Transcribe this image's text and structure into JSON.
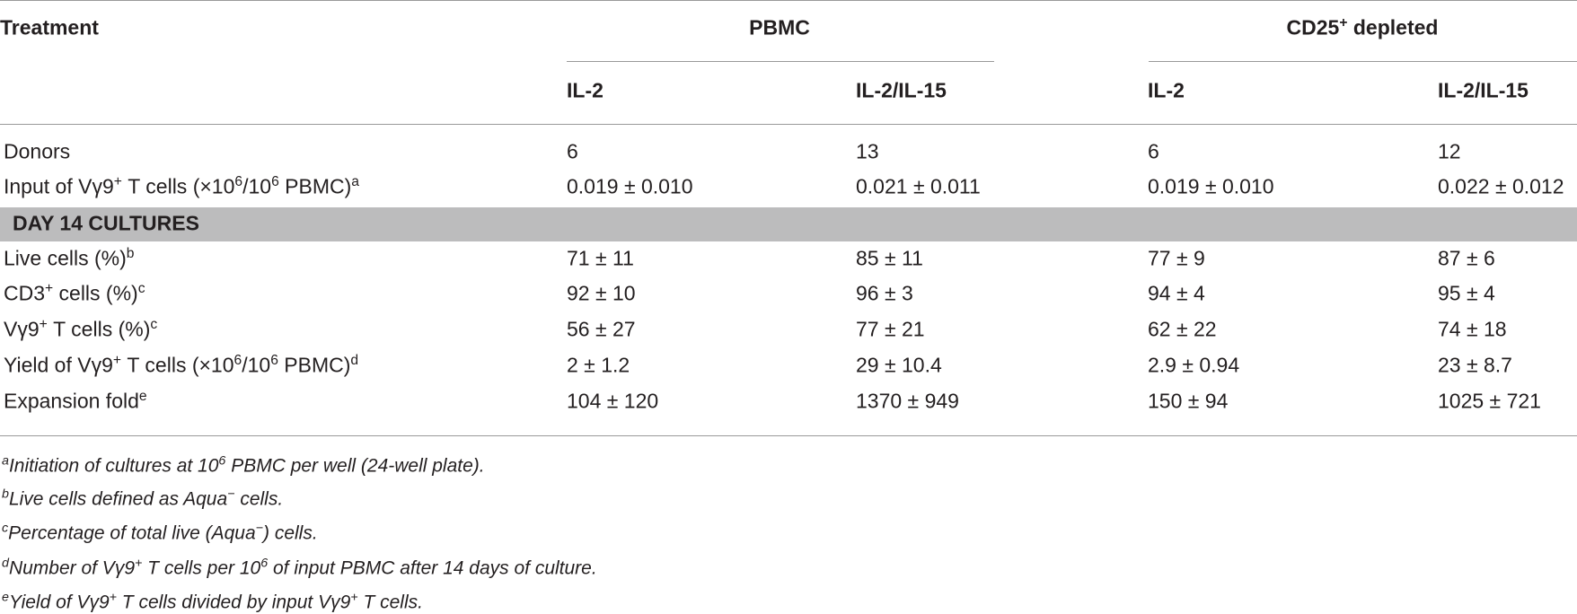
{
  "header": {
    "treatment": "Treatment",
    "groups": [
      {
        "label": [
          {
            "text": "PBMC"
          }
        ],
        "columns": [
          "IL-2",
          "IL-2/IL-15"
        ]
      },
      {
        "label": [
          {
            "text": "CD25"
          },
          {
            "sup": "+"
          },
          {
            "text": " depleted"
          }
        ],
        "columns": [
          "IL-2",
          "IL-2/IL-15"
        ]
      }
    ]
  },
  "rows_top": [
    {
      "label": [
        {
          "text": "Donors"
        }
      ],
      "cells": [
        "6",
        "13",
        "6",
        "12"
      ]
    },
    {
      "label": [
        {
          "text": "Input of Vγ9"
        },
        {
          "sup": "+"
        },
        {
          "text": " T cells (×10"
        },
        {
          "sup": "6"
        },
        {
          "text": "/10"
        },
        {
          "sup": "6"
        },
        {
          "text": " PBMC)"
        },
        {
          "sup": "a"
        }
      ],
      "cells": [
        "0.019 ± 0.010",
        "0.021 ± 0.011",
        "0.019 ± 0.010",
        "0.022 ± 0.012"
      ]
    }
  ],
  "section": "DAY 14 CULTURES",
  "rows": [
    {
      "label": [
        {
          "text": "Live cells (%)"
        },
        {
          "sup": "b"
        }
      ],
      "cells": [
        "71 ± 11",
        "85 ± 11",
        "77 ± 9",
        "87 ± 6"
      ]
    },
    {
      "label": [
        {
          "text": "CD3"
        },
        {
          "sup": "+"
        },
        {
          "text": " cells (%)"
        },
        {
          "sup": "c"
        }
      ],
      "cells": [
        "92 ± 10",
        "96 ± 3",
        "94 ± 4",
        "95 ± 4"
      ]
    },
    {
      "label": [
        {
          "text": "Vγ9"
        },
        {
          "sup": "+"
        },
        {
          "text": " T cells (%)"
        },
        {
          "sup": "c"
        }
      ],
      "cells": [
        "56 ± 27",
        "77 ± 21",
        "62 ± 22",
        "74 ± 18"
      ]
    },
    {
      "label": [
        {
          "text": "Yield of Vγ9"
        },
        {
          "sup": "+"
        },
        {
          "text": " T cells (×10"
        },
        {
          "sup": "6"
        },
        {
          "text": "/10"
        },
        {
          "sup": "6"
        },
        {
          "text": " PBMC)"
        },
        {
          "sup": "d"
        }
      ],
      "cells": [
        "2 ± 1.2",
        "29 ± 10.4",
        "2.9 ± 0.94",
        "23 ± 8.7"
      ]
    },
    {
      "label": [
        {
          "text": "Expansion fold"
        },
        {
          "sup": "e"
        }
      ],
      "cells": [
        "104 ± 120",
        "1370 ± 949",
        "150 ± 94",
        "1025 ± 721"
      ]
    }
  ],
  "footnotes": [
    {
      "mark": "a",
      "parts": [
        {
          "text": "Initiation of cultures at 10"
        },
        {
          "sup": "6"
        },
        {
          "text": " PBMC per well (24-well plate)."
        }
      ]
    },
    {
      "mark": "b",
      "parts": [
        {
          "text": "Live cells defined as Aqua"
        },
        {
          "sup": "−"
        },
        {
          "text": " cells."
        }
      ]
    },
    {
      "mark": "c",
      "parts": [
        {
          "text": "Percentage of total live (Aqua"
        },
        {
          "sup": "−"
        },
        {
          "text": ") cells."
        }
      ]
    },
    {
      "mark": "d",
      "parts": [
        {
          "text": "Number of Vγ9"
        },
        {
          "sup": "+"
        },
        {
          "text": " T cells per 10"
        },
        {
          "sup": "6"
        },
        {
          "text": " of input PBMC after 14 days of culture."
        }
      ]
    },
    {
      "mark": "e",
      "parts": [
        {
          "text": "Yield of Vγ9"
        },
        {
          "sup": "+"
        },
        {
          "text": " T cells divided by input Vγ9"
        },
        {
          "sup": "+"
        },
        {
          "text": " T cells."
        }
      ]
    }
  ]
}
